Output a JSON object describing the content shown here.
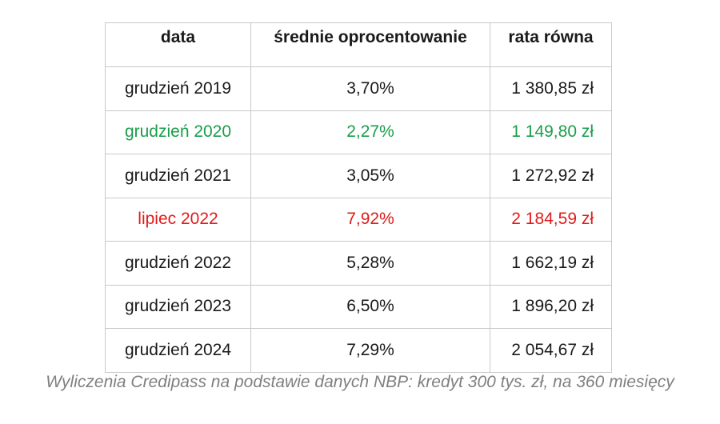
{
  "table": {
    "headers": [
      "data",
      "średnie oprocentowanie",
      "rata równa"
    ],
    "rows": [
      {
        "date": "grudzień 2019",
        "rate": "3,70%",
        "payment": "1 380,85 zł",
        "highlight": "none"
      },
      {
        "date": "grudzień 2020",
        "rate": "2,27%",
        "payment": "1 149,80 zł",
        "highlight": "green"
      },
      {
        "date": "grudzień 2021",
        "rate": "3,05%",
        "payment": "1 272,92 zł",
        "highlight": "none"
      },
      {
        "date": "lipiec 2022",
        "rate": "7,92%",
        "payment": "2 184,59 zł",
        "highlight": "red"
      },
      {
        "date": "grudzień 2022",
        "rate": "5,28%",
        "payment": "1 662,19 zł",
        "highlight": "none"
      },
      {
        "date": "grudzień 2023",
        "rate": "6,50%",
        "payment": "1 896,20 zł",
        "highlight": "none"
      },
      {
        "date": "grudzień 2024",
        "rate": "7,29%",
        "payment": "2 054,67 zł",
        "highlight": "none"
      }
    ]
  },
  "caption": "Wyliczenia Credipass na podstawie danych NBP: kredyt 300 tys. zł, na 360 miesięcy",
  "colors": {
    "highlight_green": "#1a9e4a",
    "highlight_red": "#e01b1b",
    "caption": "#7f7f7f"
  }
}
